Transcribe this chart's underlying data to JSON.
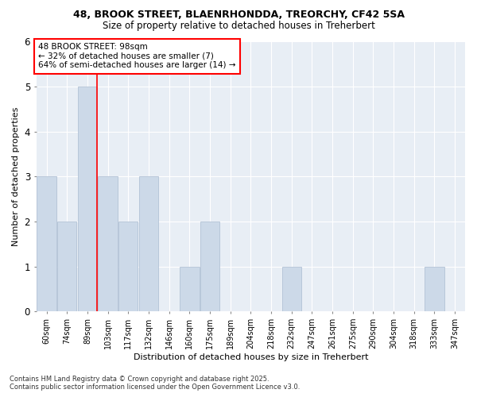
{
  "title_line1": "48, BROOK STREET, BLAENRHONDDA, TREORCHY, CF42 5SA",
  "title_line2": "Size of property relative to detached houses in Treherbert",
  "xlabel": "Distribution of detached houses by size in Treherbert",
  "ylabel": "Number of detached properties",
  "categories": [
    "60sqm",
    "74sqm",
    "89sqm",
    "103sqm",
    "117sqm",
    "132sqm",
    "146sqm",
    "160sqm",
    "175sqm",
    "189sqm",
    "204sqm",
    "218sqm",
    "232sqm",
    "247sqm",
    "261sqm",
    "275sqm",
    "290sqm",
    "304sqm",
    "318sqm",
    "333sqm",
    "347sqm"
  ],
  "values": [
    3,
    2,
    5,
    3,
    2,
    3,
    0,
    1,
    2,
    0,
    0,
    0,
    1,
    0,
    0,
    0,
    0,
    0,
    0,
    1,
    0
  ],
  "bar_color": "#ccd9e8",
  "bar_edge_color": "#aabbd0",
  "red_line_index": 2,
  "annotation_text": "48 BROOK STREET: 98sqm\n← 32% of detached houses are smaller (7)\n64% of semi-detached houses are larger (14) →",
  "annotation_box_color": "white",
  "annotation_box_edge": "red",
  "ylim": [
    0,
    6
  ],
  "yticks": [
    0,
    1,
    2,
    3,
    4,
    5,
    6
  ],
  "background_color": "#e8eef5",
  "grid_color": "white",
  "footer_line1": "Contains HM Land Registry data © Crown copyright and database right 2025.",
  "footer_line2": "Contains public sector information licensed under the Open Government Licence v3.0."
}
